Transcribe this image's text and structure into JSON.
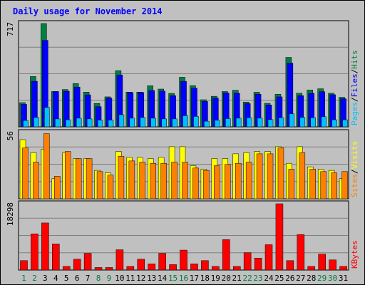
{
  "chart_data": {
    "type": "bar",
    "title": "Daily usage for November 2014",
    "categories": [
      "1",
      "2",
      "3",
      "4",
      "5",
      "6",
      "7",
      "8",
      "9",
      "10",
      "11",
      "12",
      "13",
      "14",
      "15",
      "16",
      "17",
      "18",
      "19",
      "20",
      "21",
      "22",
      "23",
      "24",
      "25",
      "26",
      "27",
      "28",
      "29",
      "30",
      "31"
    ],
    "weekend_days": [
      "1",
      "2",
      "8",
      "9",
      "15",
      "16",
      "22",
      "23",
      "29",
      "30"
    ],
    "panels": [
      {
        "name": "hits-files-pages",
        "max_label": "717",
        "ylim": [
          0,
          717
        ],
        "legend": [
          "Pages",
          "Files",
          "Hits"
        ],
        "series": [
          {
            "name": "Hits",
            "color": "#008040",
            "values": [
              168,
              349,
              717,
              245,
              259,
              300,
              241,
              162,
              208,
              390,
              241,
              241,
              285,
              262,
              232,
              344,
              286,
              188,
              212,
              245,
              254,
              172,
              240,
              163,
              226,
              482,
              233,
              256,
              264,
              233,
              205
            ]
          },
          {
            "name": "Files",
            "color": "#0000ff",
            "values": [
              156,
              316,
              600,
              245,
              247,
              276,
              222,
              140,
              200,
              360,
              238,
              238,
              252,
              248,
              216,
              316,
              268,
              176,
              200,
              235,
              233,
              161,
              226,
              152,
              208,
              442,
              216,
              233,
              244,
              223,
              195
            ]
          },
          {
            "name": "Pages",
            "color": "#00c0ff",
            "values": [
              44,
              65,
              135,
              55,
              49,
              60,
              55,
              47,
              47,
              84,
              60,
              65,
              60,
              55,
              55,
              78,
              72,
              39,
              46,
              57,
              60,
              63,
              60,
              50,
              63,
              90,
              65,
              63,
              70,
              49,
              49
            ]
          }
        ]
      },
      {
        "name": "visits-sites",
        "max_label": "56",
        "ylim": [
          0,
          56
        ],
        "legend": [
          "Sites",
          "Visits"
        ],
        "series": [
          {
            "name": "Visits",
            "color": "#ffff00",
            "values": [
              50,
              39,
              42,
              17,
              39,
              34,
              34,
              24,
              22,
              40,
              35,
              35,
              34,
              35,
              44,
              44,
              28,
              25,
              34,
              34,
              38,
              39,
              40,
              40,
              44,
              30,
              44,
              27,
              25,
              24,
              17
            ]
          },
          {
            "name": "Sites",
            "color": "#ff8000",
            "values": [
              43,
              31,
              55,
              19,
              40,
              34,
              34,
              23,
              20,
              36,
              32,
              31,
              30,
              30,
              31,
              31,
              26,
              24,
              28,
              29,
              30,
              31,
              38,
              38,
              43,
              25,
              39,
              25,
              23,
              22,
              23
            ]
          }
        ]
      },
      {
        "name": "kbytes",
        "max_label": "18298",
        "ylim": [
          0,
          18298
        ],
        "legend": [
          "KBytes"
        ],
        "series": [
          {
            "name": "KBytes",
            "color": "#ff0000",
            "values": [
              2600,
              10000,
              13000,
              7200,
              1000,
              3000,
              4600,
              700,
              700,
              5600,
              1000,
              3000,
              1700,
              4600,
              1500,
              5500,
              1700,
              2600,
              1000,
              8400,
              1000,
              4800,
              3300,
              7000,
              18298,
              2600,
              9800,
              1000,
              4400,
              2800,
              1000
            ]
          }
        ]
      }
    ],
    "grid": true
  }
}
